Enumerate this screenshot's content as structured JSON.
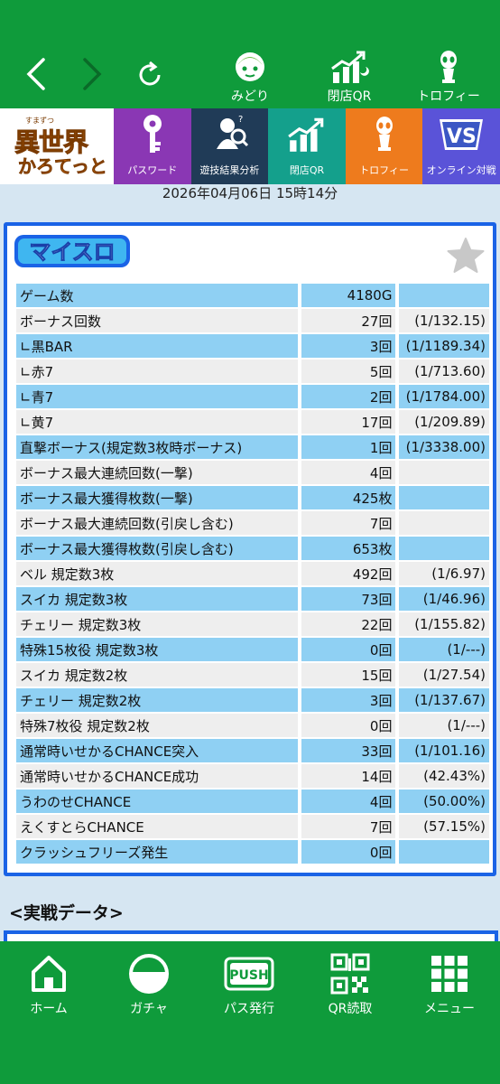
{
  "nav": {
    "back_icon": "chevron-left-icon",
    "forward_icon": "chevron-right-icon",
    "reload_icon": "reload-icon"
  },
  "top_icons": [
    {
      "label": "みどり",
      "icon": "character-icon"
    },
    {
      "label": "閉店QR",
      "icon": "chart-up-icon"
    },
    {
      "label": "トロフィー",
      "icon": "alien-trophy-icon"
    }
  ],
  "banner": {
    "logo_small": "すまずつ",
    "logo_kanji": "異世界",
    "logo_kana": "かろてっと",
    "tiles": [
      {
        "label": "パスワード",
        "color": "#8a37b4",
        "icon": "key-icon"
      },
      {
        "label": "遊技結果分析",
        "color": "#203b57",
        "icon": "analysis-icon"
      },
      {
        "label": "閉店QR",
        "color": "#14a08c",
        "icon": "chart-up-icon"
      },
      {
        "label": "トロフィー",
        "color": "#ee7b1d",
        "icon": "alien-trophy-icon"
      },
      {
        "label": "オンライン対戦",
        "color": "#5a53d8",
        "icon": "vs-icon"
      }
    ]
  },
  "date": "2026年04月06日 15時14分",
  "panel": {
    "logo": "マイスロ",
    "rows": [
      {
        "label": "ゲーム数",
        "value": "4180G",
        "rate": ""
      },
      {
        "label": "ボーナス回数",
        "value": "27回",
        "rate": "(1/132.15)"
      },
      {
        "label": "∟黒BAR",
        "value": "3回",
        "rate": "(1/1189.34)"
      },
      {
        "label": "∟赤7",
        "value": "5回",
        "rate": "(1/713.60)"
      },
      {
        "label": "∟青7",
        "value": "2回",
        "rate": "(1/1784.00)"
      },
      {
        "label": "∟黄7",
        "value": "17回",
        "rate": "(1/209.89)"
      },
      {
        "label": "直撃ボーナス(規定数3枚時ボーナス)",
        "value": "1回",
        "rate": "(1/3338.00)"
      },
      {
        "label": "ボーナス最大連続回数(一撃)",
        "value": "4回",
        "rate": ""
      },
      {
        "label": "ボーナス最大獲得枚数(一撃)",
        "value": "425枚",
        "rate": ""
      },
      {
        "label": "ボーナス最大連続回数(引戻し含む)",
        "value": "7回",
        "rate": ""
      },
      {
        "label": "ボーナス最大獲得枚数(引戻し含む)",
        "value": "653枚",
        "rate": ""
      },
      {
        "label": "ベル 規定数3枚",
        "value": "492回",
        "rate": "(1/6.97)"
      },
      {
        "label": "スイカ 規定数3枚",
        "value": "73回",
        "rate": "(1/46.96)"
      },
      {
        "label": "チェリー 規定数3枚",
        "value": "22回",
        "rate": "(1/155.82)"
      },
      {
        "label": "特殊15枚役 規定数3枚",
        "value": "0回",
        "rate": "(1/---)"
      },
      {
        "label": "スイカ 規定数2枚",
        "value": "15回",
        "rate": "(1/27.54)"
      },
      {
        "label": "チェリー 規定数2枚",
        "value": "3回",
        "rate": "(1/137.67)"
      },
      {
        "label": "特殊7枚役 規定数2枚",
        "value": "0回",
        "rate": "(1/---)"
      },
      {
        "label": "通常時いせかるCHANCE突入",
        "value": "33回",
        "rate": "(1/101.16)"
      },
      {
        "label": "通常時いせかるCHANCE成功",
        "value": "14回",
        "rate": "(42.43%)"
      },
      {
        "label": "うわのせCHANCE",
        "value": "4回",
        "rate": "(50.00%)"
      },
      {
        "label": "えくすとらCHANCE",
        "value": "7回",
        "rate": "(57.15%)"
      },
      {
        "label": "クラッシュフリーズ発生",
        "value": "0回",
        "rate": ""
      }
    ]
  },
  "section_title": "<実戦データ>",
  "bottom_nav": [
    {
      "label": "ホーム",
      "icon": "home-icon"
    },
    {
      "label": "ガチャ",
      "icon": "gacha-icon"
    },
    {
      "label": "パス発行",
      "icon": "push-icon",
      "badge": "PUSH"
    },
    {
      "label": "QR読取",
      "icon": "qr-icon"
    },
    {
      "label": "メニュー",
      "icon": "menu-grid-icon"
    }
  ]
}
